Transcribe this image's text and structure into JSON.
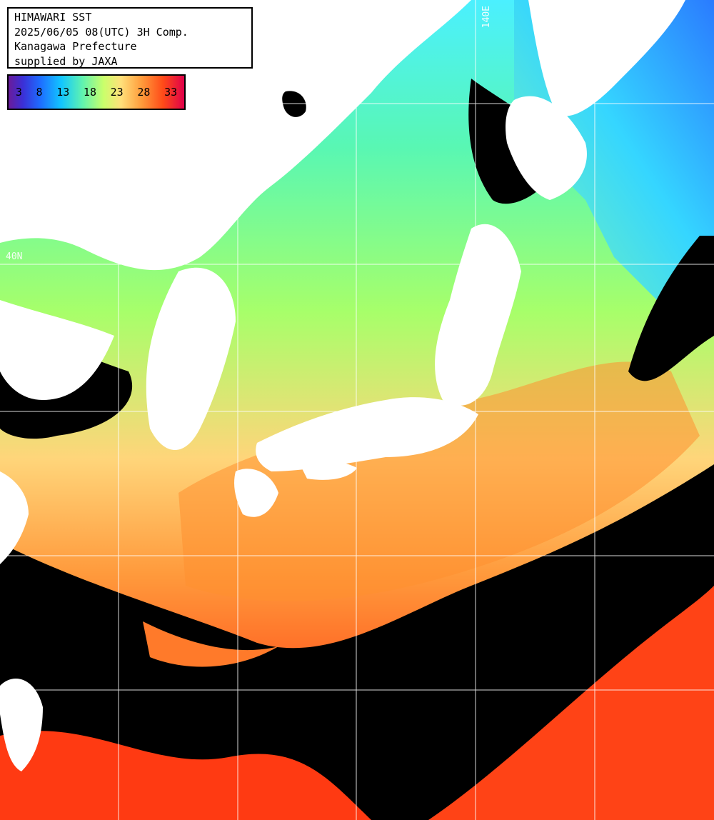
{
  "header": {
    "line1": "HIMAWARI SST",
    "line2": "2025/06/05 08(UTC) 3H Comp.",
    "line3": "Kanagawa Prefecture",
    "line4": "supplied by JAXA"
  },
  "legend": {
    "ticks": [
      "3",
      "8",
      "13",
      "18",
      "23",
      "28",
      "33"
    ]
  },
  "graticule": {
    "lat_label": "40N",
    "lon_label": "140E"
  },
  "colors": {
    "cloud": "#000000",
    "land": "#ffffff",
    "grid": "#ffffff"
  }
}
